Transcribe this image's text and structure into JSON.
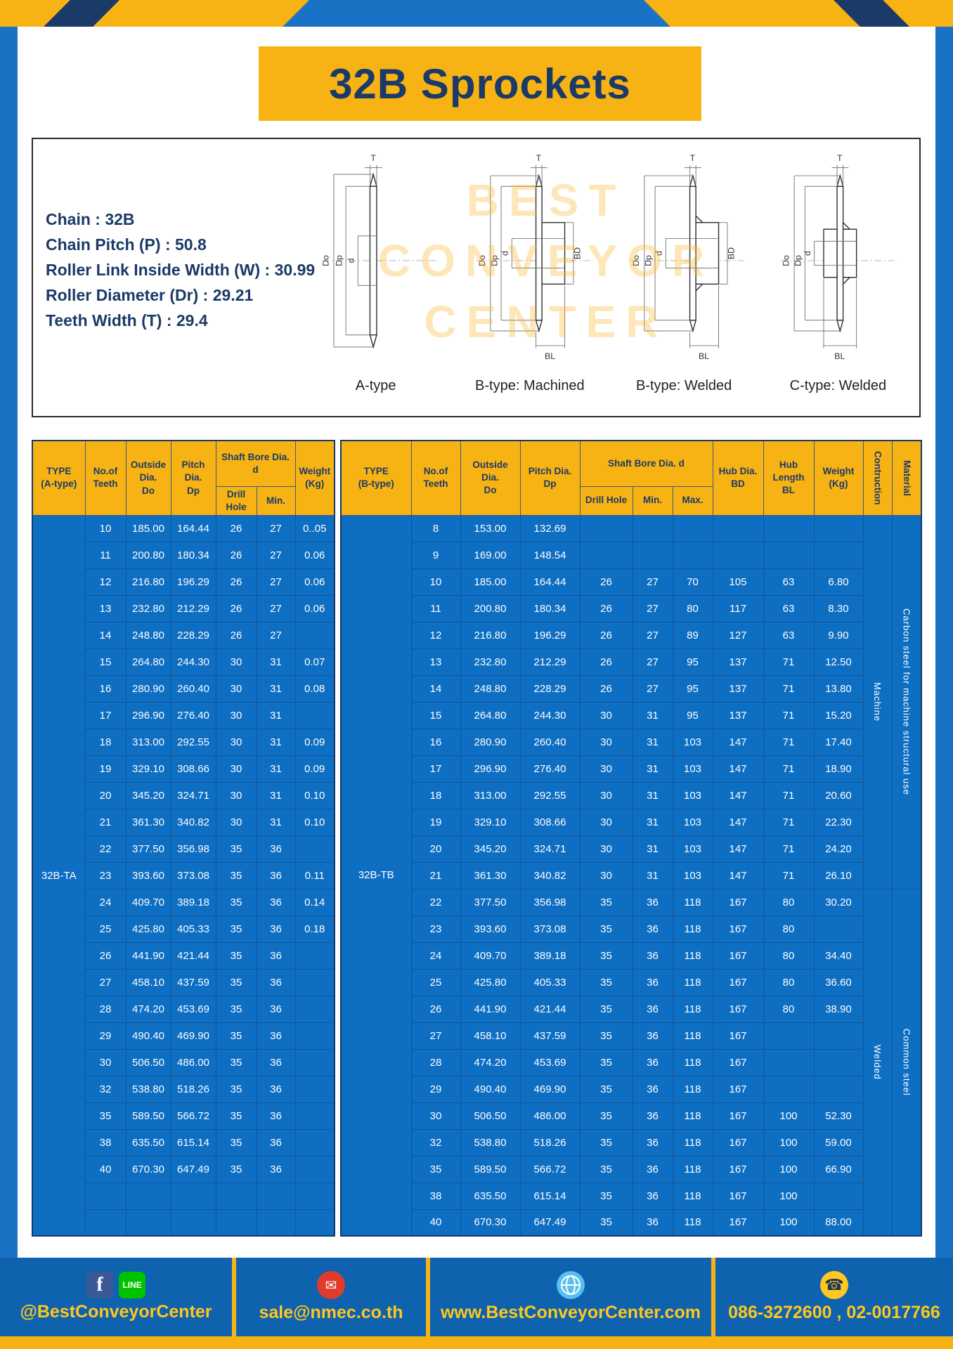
{
  "page": {
    "title": "32B Sprockets"
  },
  "specs": {
    "lines": [
      "Chain : 32B",
      "Chain Pitch (P) : 50.8",
      "Roller Link Inside Width (W) : 30.99",
      "Roller Diameter (Dr) : 29.21",
      "Teeth Width (T) : 29.4"
    ]
  },
  "watermark": {
    "lines": [
      "BEST",
      "CONVEYOR",
      "CENTER"
    ]
  },
  "diagrams": {
    "labels": [
      "A-type",
      "B-type: Machined",
      "B-type: Welded",
      "C-type: Welded"
    ],
    "dims": {
      "t": "T",
      "do": "Do",
      "dp": "Dp",
      "d": "d",
      "bd": "BD",
      "bl": "BL"
    }
  },
  "table_a": {
    "h_type": "TYPE\n(A-type)",
    "h_teeth": "No.of\nTeeth",
    "h_outside": "Outside\nDia.\nDo",
    "h_pitch": "Pitch Dia.\nDp",
    "h_shaft": "Shaft Bore Dia. d",
    "h_drill": "Drill Hole",
    "h_min": "Min.",
    "h_weight": "Weight\n(Kg)",
    "type_value": "32B-TA",
    "rows": [
      [
        "10",
        "185.00",
        "164.44",
        "26",
        "27",
        "0..05"
      ],
      [
        "11",
        "200.80",
        "180.34",
        "26",
        "27",
        "0.06"
      ],
      [
        "12",
        "216.80",
        "196.29",
        "26",
        "27",
        "0.06"
      ],
      [
        "13",
        "232.80",
        "212.29",
        "26",
        "27",
        "0.06"
      ],
      [
        "14",
        "248.80",
        "228.29",
        "26",
        "27",
        ""
      ],
      [
        "15",
        "264.80",
        "244.30",
        "30",
        "31",
        "0.07"
      ],
      [
        "16",
        "280.90",
        "260.40",
        "30",
        "31",
        "0.08"
      ],
      [
        "17",
        "296.90",
        "276.40",
        "30",
        "31",
        ""
      ],
      [
        "18",
        "313.00",
        "292.55",
        "30",
        "31",
        "0.09"
      ],
      [
        "19",
        "329.10",
        "308.66",
        "30",
        "31",
        "0.09"
      ],
      [
        "20",
        "345.20",
        "324.71",
        "30",
        "31",
        "0.10"
      ],
      [
        "21",
        "361.30",
        "340.82",
        "30",
        "31",
        "0.10"
      ],
      [
        "22",
        "377.50",
        "356.98",
        "35",
        "36",
        ""
      ],
      [
        "23",
        "393.60",
        "373.08",
        "35",
        "36",
        "0.11"
      ],
      [
        "24",
        "409.70",
        "389.18",
        "35",
        "36",
        "0.14"
      ],
      [
        "25",
        "425.80",
        "405.33",
        "35",
        "36",
        "0.18"
      ],
      [
        "26",
        "441.90",
        "421.44",
        "35",
        "36",
        ""
      ],
      [
        "27",
        "458.10",
        "437.59",
        "35",
        "36",
        ""
      ],
      [
        "28",
        "474.20",
        "453.69",
        "35",
        "36",
        ""
      ],
      [
        "29",
        "490.40",
        "469.90",
        "35",
        "36",
        ""
      ],
      [
        "30",
        "506.50",
        "486.00",
        "35",
        "36",
        ""
      ],
      [
        "32",
        "538.80",
        "518.26",
        "35",
        "36",
        ""
      ],
      [
        "35",
        "589.50",
        "566.72",
        "35",
        "36",
        ""
      ],
      [
        "38",
        "635.50",
        "615.14",
        "35",
        "36",
        ""
      ],
      [
        "40",
        "670.30",
        "647.49",
        "35",
        "36",
        ""
      ],
      [
        "",
        "",
        "",
        "",
        "",
        ""
      ],
      [
        "",
        "",
        "",
        "",
        "",
        ""
      ]
    ]
  },
  "table_b": {
    "h_type": "TYPE\n(B-type)",
    "h_teeth": "No.of\nTeeth",
    "h_outside": "Outside\nDia.\nDo",
    "h_pitch": "Pitch Dia.\nDp",
    "h_shaft": "Shaft Bore Dia. d",
    "h_drill": "Drill Hole",
    "h_min": "Min.",
    "h_max": "Max.",
    "h_bd": "Hub Dia.\nBD",
    "h_bl": "Hub\nLength\nBL",
    "h_weight": "Weight\n(Kg)",
    "h_construction": "Contruction",
    "h_material": "Material",
    "type_value": "32B-TB",
    "construction": [
      {
        "label": "Machine",
        "span": 14
      },
      {
        "label": "Welded",
        "span": 13
      }
    ],
    "material": [
      {
        "label": "Carbon steel for machine structural use",
        "span": 14
      },
      {
        "label": "Common steel",
        "span": 13
      }
    ],
    "rows": [
      [
        "8",
        "153.00",
        "132.69",
        "",
        "",
        "",
        "",
        "",
        ""
      ],
      [
        "9",
        "169.00",
        "148.54",
        "",
        "",
        "",
        "",
        "",
        ""
      ],
      [
        "10",
        "185.00",
        "164.44",
        "26",
        "27",
        "70",
        "105",
        "63",
        "6.80"
      ],
      [
        "11",
        "200.80",
        "180.34",
        "26",
        "27",
        "80",
        "117",
        "63",
        "8.30"
      ],
      [
        "12",
        "216.80",
        "196.29",
        "26",
        "27",
        "89",
        "127",
        "63",
        "9.90"
      ],
      [
        "13",
        "232.80",
        "212.29",
        "26",
        "27",
        "95",
        "137",
        "71",
        "12.50"
      ],
      [
        "14",
        "248.80",
        "228.29",
        "26",
        "27",
        "95",
        "137",
        "71",
        "13.80"
      ],
      [
        "15",
        "264.80",
        "244.30",
        "30",
        "31",
        "95",
        "137",
        "71",
        "15.20"
      ],
      [
        "16",
        "280.90",
        "260.40",
        "30",
        "31",
        "103",
        "147",
        "71",
        "17.40"
      ],
      [
        "17",
        "296.90",
        "276.40",
        "30",
        "31",
        "103",
        "147",
        "71",
        "18.90"
      ],
      [
        "18",
        "313.00",
        "292.55",
        "30",
        "31",
        "103",
        "147",
        "71",
        "20.60"
      ],
      [
        "19",
        "329.10",
        "308.66",
        "30",
        "31",
        "103",
        "147",
        "71",
        "22.30"
      ],
      [
        "20",
        "345.20",
        "324.71",
        "30",
        "31",
        "103",
        "147",
        "71",
        "24.20"
      ],
      [
        "21",
        "361.30",
        "340.82",
        "30",
        "31",
        "103",
        "147",
        "71",
        "26.10"
      ],
      [
        "22",
        "377.50",
        "356.98",
        "35",
        "36",
        "118",
        "167",
        "80",
        "30.20"
      ],
      [
        "23",
        "393.60",
        "373.08",
        "35",
        "36",
        "118",
        "167",
        "80",
        ""
      ],
      [
        "24",
        "409.70",
        "389.18",
        "35",
        "36",
        "118",
        "167",
        "80",
        "34.40"
      ],
      [
        "25",
        "425.80",
        "405.33",
        "35",
        "36",
        "118",
        "167",
        "80",
        "36.60"
      ],
      [
        "26",
        "441.90",
        "421.44",
        "35",
        "36",
        "118",
        "167",
        "80",
        "38.90"
      ],
      [
        "27",
        "458.10",
        "437.59",
        "35",
        "36",
        "118",
        "167",
        "",
        ""
      ],
      [
        "28",
        "474.20",
        "453.69",
        "35",
        "36",
        "118",
        "167",
        "",
        ""
      ],
      [
        "29",
        "490.40",
        "469.90",
        "35",
        "36",
        "118",
        "167",
        "",
        ""
      ],
      [
        "30",
        "506.50",
        "486.00",
        "35",
        "36",
        "118",
        "167",
        "100",
        "52.30"
      ],
      [
        "32",
        "538.80",
        "518.26",
        "35",
        "36",
        "118",
        "167",
        "100",
        "59.00"
      ],
      [
        "35",
        "589.50",
        "566.72",
        "35",
        "36",
        "118",
        "167",
        "100",
        "66.90"
      ],
      [
        "38",
        "635.50",
        "615.14",
        "35",
        "36",
        "118",
        "167",
        "100",
        ""
      ],
      [
        "40",
        "670.30",
        "647.49",
        "35",
        "36",
        "118",
        "167",
        "100",
        "88.00"
      ]
    ]
  },
  "footer": {
    "icons": {
      "facebook": "f",
      "line": "LINE",
      "mail": "✉",
      "phone": "☎"
    },
    "items": [
      {
        "label": "@BestConveyorCenter"
      },
      {
        "label": "sale@nmec.co.th"
      },
      {
        "label": "www.BestConveyorCenter.com"
      },
      {
        "label": "086-3272600 , 02-0017766"
      }
    ]
  }
}
